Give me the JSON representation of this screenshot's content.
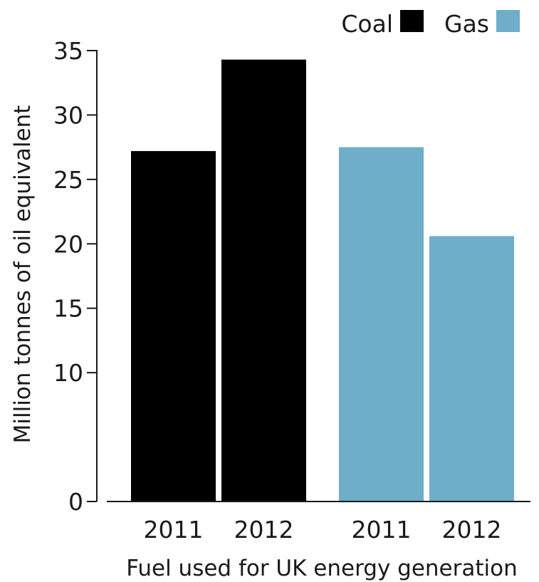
{
  "chart_data": {
    "type": "bar",
    "title": "",
    "xlabel": "Fuel used for UK energy generation",
    "ylabel": "Million tonnes of oil equivalent",
    "ylim": [
      0,
      35
    ],
    "yticks": [
      0,
      10,
      15,
      20,
      25,
      30,
      35
    ],
    "ytick_labels": [
      "0",
      "10",
      "15",
      "20",
      "25",
      "30",
      "35"
    ],
    "grid": false,
    "legend_position": "top-right",
    "categories": [
      "2011",
      "2012"
    ],
    "series": [
      {
        "name": "Coal",
        "color": "#000000",
        "values": [
          27.2,
          34.3
        ]
      },
      {
        "name": "Gas",
        "color": "#6eaec9",
        "values": [
          27.5,
          20.6
        ]
      }
    ]
  }
}
